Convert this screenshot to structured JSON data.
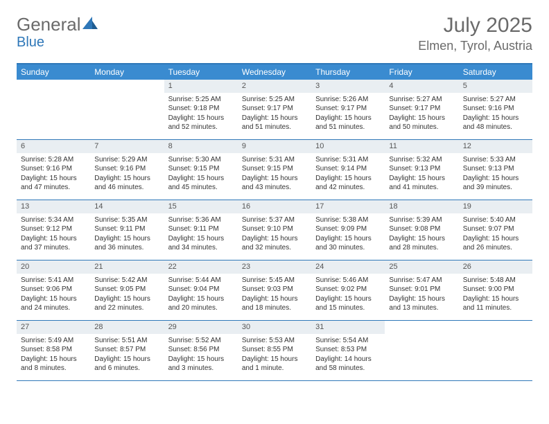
{
  "logo": {
    "text1": "General",
    "text2": "Blue",
    "accent_color": "#2e77b8",
    "text_color": "#6a6a6a"
  },
  "colors": {
    "header_bar": "#3a8bd0",
    "header_bar_border": "#2e77b8",
    "daynum_bg": "#e9eef2",
    "text": "#333333",
    "muted": "#6a6a6a"
  },
  "title": "July 2025",
  "location": "Elmen, Tyrol, Austria",
  "weekdays": [
    "Sunday",
    "Monday",
    "Tuesday",
    "Wednesday",
    "Thursday",
    "Friday",
    "Saturday"
  ],
  "weeks": [
    [
      {
        "n": "",
        "sr": "",
        "ss": "",
        "dl": ""
      },
      {
        "n": "",
        "sr": "",
        "ss": "",
        "dl": ""
      },
      {
        "n": "1",
        "sr": "Sunrise: 5:25 AM",
        "ss": "Sunset: 9:18 PM",
        "dl": "Daylight: 15 hours and 52 minutes."
      },
      {
        "n": "2",
        "sr": "Sunrise: 5:25 AM",
        "ss": "Sunset: 9:17 PM",
        "dl": "Daylight: 15 hours and 51 minutes."
      },
      {
        "n": "3",
        "sr": "Sunrise: 5:26 AM",
        "ss": "Sunset: 9:17 PM",
        "dl": "Daylight: 15 hours and 51 minutes."
      },
      {
        "n": "4",
        "sr": "Sunrise: 5:27 AM",
        "ss": "Sunset: 9:17 PM",
        "dl": "Daylight: 15 hours and 50 minutes."
      },
      {
        "n": "5",
        "sr": "Sunrise: 5:27 AM",
        "ss": "Sunset: 9:16 PM",
        "dl": "Daylight: 15 hours and 48 minutes."
      }
    ],
    [
      {
        "n": "6",
        "sr": "Sunrise: 5:28 AM",
        "ss": "Sunset: 9:16 PM",
        "dl": "Daylight: 15 hours and 47 minutes."
      },
      {
        "n": "7",
        "sr": "Sunrise: 5:29 AM",
        "ss": "Sunset: 9:16 PM",
        "dl": "Daylight: 15 hours and 46 minutes."
      },
      {
        "n": "8",
        "sr": "Sunrise: 5:30 AM",
        "ss": "Sunset: 9:15 PM",
        "dl": "Daylight: 15 hours and 45 minutes."
      },
      {
        "n": "9",
        "sr": "Sunrise: 5:31 AM",
        "ss": "Sunset: 9:15 PM",
        "dl": "Daylight: 15 hours and 43 minutes."
      },
      {
        "n": "10",
        "sr": "Sunrise: 5:31 AM",
        "ss": "Sunset: 9:14 PM",
        "dl": "Daylight: 15 hours and 42 minutes."
      },
      {
        "n": "11",
        "sr": "Sunrise: 5:32 AM",
        "ss": "Sunset: 9:13 PM",
        "dl": "Daylight: 15 hours and 41 minutes."
      },
      {
        "n": "12",
        "sr": "Sunrise: 5:33 AM",
        "ss": "Sunset: 9:13 PM",
        "dl": "Daylight: 15 hours and 39 minutes."
      }
    ],
    [
      {
        "n": "13",
        "sr": "Sunrise: 5:34 AM",
        "ss": "Sunset: 9:12 PM",
        "dl": "Daylight: 15 hours and 37 minutes."
      },
      {
        "n": "14",
        "sr": "Sunrise: 5:35 AM",
        "ss": "Sunset: 9:11 PM",
        "dl": "Daylight: 15 hours and 36 minutes."
      },
      {
        "n": "15",
        "sr": "Sunrise: 5:36 AM",
        "ss": "Sunset: 9:11 PM",
        "dl": "Daylight: 15 hours and 34 minutes."
      },
      {
        "n": "16",
        "sr": "Sunrise: 5:37 AM",
        "ss": "Sunset: 9:10 PM",
        "dl": "Daylight: 15 hours and 32 minutes."
      },
      {
        "n": "17",
        "sr": "Sunrise: 5:38 AM",
        "ss": "Sunset: 9:09 PM",
        "dl": "Daylight: 15 hours and 30 minutes."
      },
      {
        "n": "18",
        "sr": "Sunrise: 5:39 AM",
        "ss": "Sunset: 9:08 PM",
        "dl": "Daylight: 15 hours and 28 minutes."
      },
      {
        "n": "19",
        "sr": "Sunrise: 5:40 AM",
        "ss": "Sunset: 9:07 PM",
        "dl": "Daylight: 15 hours and 26 minutes."
      }
    ],
    [
      {
        "n": "20",
        "sr": "Sunrise: 5:41 AM",
        "ss": "Sunset: 9:06 PM",
        "dl": "Daylight: 15 hours and 24 minutes."
      },
      {
        "n": "21",
        "sr": "Sunrise: 5:42 AM",
        "ss": "Sunset: 9:05 PM",
        "dl": "Daylight: 15 hours and 22 minutes."
      },
      {
        "n": "22",
        "sr": "Sunrise: 5:44 AM",
        "ss": "Sunset: 9:04 PM",
        "dl": "Daylight: 15 hours and 20 minutes."
      },
      {
        "n": "23",
        "sr": "Sunrise: 5:45 AM",
        "ss": "Sunset: 9:03 PM",
        "dl": "Daylight: 15 hours and 18 minutes."
      },
      {
        "n": "24",
        "sr": "Sunrise: 5:46 AM",
        "ss": "Sunset: 9:02 PM",
        "dl": "Daylight: 15 hours and 15 minutes."
      },
      {
        "n": "25",
        "sr": "Sunrise: 5:47 AM",
        "ss": "Sunset: 9:01 PM",
        "dl": "Daylight: 15 hours and 13 minutes."
      },
      {
        "n": "26",
        "sr": "Sunrise: 5:48 AM",
        "ss": "Sunset: 9:00 PM",
        "dl": "Daylight: 15 hours and 11 minutes."
      }
    ],
    [
      {
        "n": "27",
        "sr": "Sunrise: 5:49 AM",
        "ss": "Sunset: 8:58 PM",
        "dl": "Daylight: 15 hours and 8 minutes."
      },
      {
        "n": "28",
        "sr": "Sunrise: 5:51 AM",
        "ss": "Sunset: 8:57 PM",
        "dl": "Daylight: 15 hours and 6 minutes."
      },
      {
        "n": "29",
        "sr": "Sunrise: 5:52 AM",
        "ss": "Sunset: 8:56 PM",
        "dl": "Daylight: 15 hours and 3 minutes."
      },
      {
        "n": "30",
        "sr": "Sunrise: 5:53 AM",
        "ss": "Sunset: 8:55 PM",
        "dl": "Daylight: 15 hours and 1 minute."
      },
      {
        "n": "31",
        "sr": "Sunrise: 5:54 AM",
        "ss": "Sunset: 8:53 PM",
        "dl": "Daylight: 14 hours and 58 minutes."
      },
      {
        "n": "",
        "sr": "",
        "ss": "",
        "dl": ""
      },
      {
        "n": "",
        "sr": "",
        "ss": "",
        "dl": ""
      }
    ]
  ]
}
